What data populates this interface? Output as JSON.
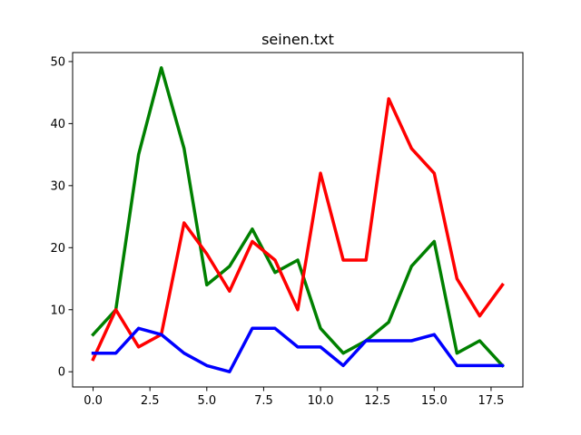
{
  "chart_data": {
    "type": "line",
    "title": "seinen.txt",
    "xlabel": "",
    "ylabel": "",
    "x": [
      0,
      1,
      2,
      3,
      4,
      5,
      6,
      7,
      8,
      9,
      10,
      11,
      12,
      13,
      14,
      15,
      16,
      17,
      18
    ],
    "xlim": [
      -0.9,
      18.9
    ],
    "ylim": [
      -2.45,
      51.45
    ],
    "xticks": [
      0,
      2.5,
      5,
      7.5,
      10,
      12.5,
      15,
      17.5
    ],
    "xtick_labels": [
      "0.0",
      "2.5",
      "5.0",
      "7.5",
      "10.0",
      "12.5",
      "15.0",
      "17.5"
    ],
    "yticks": [
      0,
      10,
      20,
      30,
      40,
      50
    ],
    "ytick_labels": [
      "0",
      "10",
      "20",
      "30",
      "40",
      "50"
    ],
    "grid": false,
    "series": [
      {
        "color": "#008000",
        "values": [
          6,
          10,
          35,
          49,
          36,
          14,
          17,
          23,
          16,
          18,
          7,
          3,
          5,
          8,
          17,
          21,
          3,
          5,
          1
        ]
      },
      {
        "color": "#ff0000",
        "values": [
          2,
          10,
          4,
          6,
          24,
          19,
          13,
          21,
          18,
          10,
          32,
          18,
          18,
          44,
          36,
          32,
          15,
          9,
          14
        ]
      },
      {
        "color": "#0000ff",
        "values": [
          3,
          3,
          7,
          6,
          3,
          1,
          0,
          7,
          7,
          4,
          4,
          1,
          5,
          5,
          5,
          6,
          1,
          1,
          1
        ]
      }
    ]
  }
}
